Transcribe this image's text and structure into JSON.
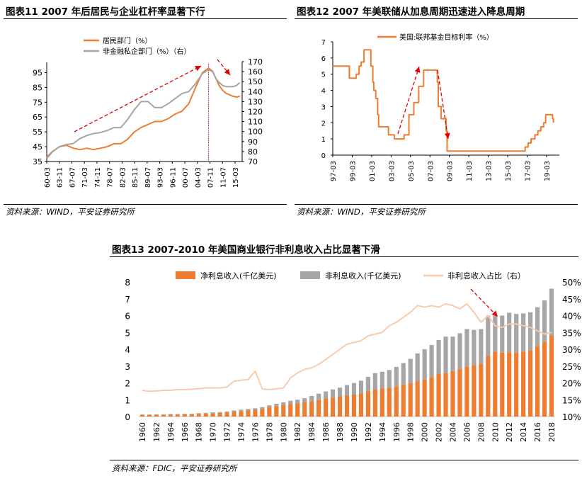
{
  "chart11": {
    "title": "图表11 2007 年后居民与企业杠杆率显著下行",
    "source": "资料来源：WIND，平安证券研究所",
    "chart_data": {
      "type": "line",
      "title": "",
      "x_ticks": [
        "60-03",
        "63-11",
        "67-07",
        "71-03",
        "74-11",
        "78-07",
        "82-03",
        "85-11",
        "89-07",
        "93-03",
        "96-11",
        "00-07",
        "04-03",
        "07-11",
        "11-07",
        "15-03"
      ],
      "y_left_ticks": [
        35,
        45,
        55,
        65,
        75,
        85,
        95
      ],
      "y_right_ticks": [
        70,
        80,
        90,
        100,
        110,
        120,
        130,
        140,
        150,
        160,
        170
      ],
      "ylim_left": [
        35,
        100
      ],
      "ylim_right": [
        70,
        170
      ],
      "legend": [
        "居民部门（%）",
        "非金融私企部门（%）（右）"
      ],
      "series": [
        {
          "name": "居民部门（%）",
          "axis": "left",
          "color": "#ED7D31",
          "x": [
            1960.2,
            1962,
            1964,
            1966,
            1968,
            1970,
            1972,
            1974,
            1976,
            1978,
            1980,
            1982,
            1984,
            1986,
            1988,
            1990,
            1992,
            1994,
            1996,
            1998,
            2000,
            2002,
            2004,
            2006,
            2007.8,
            2009,
            2010,
            2011,
            2012,
            2013,
            2014,
            2015,
            2016,
            2017
          ],
          "y": [
            38,
            42,
            45,
            46,
            44,
            43,
            44,
            43,
            44,
            45,
            47,
            47,
            50,
            55,
            58,
            60,
            62,
            62,
            64,
            67,
            69,
            74,
            85,
            95,
            98,
            96,
            91,
            86,
            83,
            81,
            80,
            79,
            78.5,
            79
          ]
        },
        {
          "name": "非金融私企部门（%）（右）",
          "axis": "right",
          "color": "#A6A6A6",
          "x": [
            1960.2,
            1962,
            1964,
            1966,
            1968,
            1970,
            1972,
            1974,
            1976,
            1978,
            1980,
            1982,
            1984,
            1986,
            1988,
            1990,
            1992,
            1994,
            1996,
            1998,
            2000,
            2002,
            2004,
            2006,
            2007.8,
            2009,
            2010,
            2011,
            2012,
            2013,
            2014,
            2015,
            2016,
            2017
          ],
          "y": [
            73,
            80,
            85,
            87,
            88,
            93,
            96,
            98,
            99,
            101,
            104,
            104,
            112,
            122,
            130,
            130,
            124,
            124,
            128,
            133,
            138,
            140,
            148,
            158,
            162,
            160,
            153,
            149,
            146,
            145,
            145,
            145,
            146,
            149
          ]
        }
      ],
      "annotations": [
        "dashed-vertical-at-07-11",
        "dashed-trend-arrow-up",
        "dashed-trend-arrow-down"
      ]
    }
  },
  "chart12": {
    "title": "图表12 2007 年美联储从加息周期迅速进入降息周期",
    "source": "资料来源：WIND，平安证券研究所",
    "chart_data": {
      "type": "line",
      "title": "",
      "x_ticks": [
        "97-03",
        "99-03",
        "01-03",
        "03-03",
        "05-03",
        "07-03",
        "09-03",
        "11-03",
        "13-03",
        "15-03",
        "17-03",
        "19-03"
      ],
      "y_ticks": [
        0,
        1,
        2,
        3,
        4,
        5,
        6,
        7
      ],
      "ylim": [
        0,
        7
      ],
      "legend": [
        "美国:联邦基金目标利率（%）"
      ],
      "series": [
        {
          "name": "美国:联邦基金目标利率（%）",
          "color": "#ED7D31",
          "x": [
            1997.2,
            1998.7,
            1998.9,
            1999.4,
            1999.6,
            1999.9,
            2000.1,
            2000.4,
            2000.9,
            2001.1,
            2001.3,
            2001.4,
            2001.6,
            2001.8,
            2001.9,
            2002.9,
            2003.5,
            2004.5,
            2005.0,
            2005.5,
            2006.0,
            2006.5,
            2007.7,
            2007.9,
            2008.0,
            2008.3,
            2008.8,
            2008.9,
            2015.9,
            2016.9,
            2017.2,
            2017.5,
            2017.9,
            2018.2,
            2018.5,
            2018.8,
            2019.0,
            2019.5,
            2019.7,
            2019.8
          ],
          "y": [
            5.5,
            5.5,
            4.75,
            4.75,
            5.0,
            5.5,
            5.75,
            6.5,
            6.5,
            5.5,
            4.5,
            4.0,
            3.5,
            2.5,
            1.75,
            1.25,
            1.0,
            1.25,
            2.5,
            3.25,
            4.25,
            5.25,
            5.25,
            4.5,
            3.0,
            2.25,
            1.5,
            0.25,
            0.25,
            0.5,
            0.75,
            1.0,
            1.25,
            1.5,
            1.75,
            2.0,
            2.5,
            2.5,
            2.25,
            2.0
          ]
        }
      ],
      "annotations": [
        "dashed-arrow-up-2004-2006",
        "dashed-arrow-down-2007-2009"
      ]
    }
  },
  "chart13": {
    "title": "图表13 2007-2010 年美国商业银行非利息收入占比显著下滑",
    "source": "资料来源：FDIC，平安证券研究所",
    "chart_data": {
      "type": "bar",
      "title": "",
      "x_ticks": [
        "1960",
        "1962",
        "1964",
        "1966",
        "1968",
        "1970",
        "1972",
        "1974",
        "1976",
        "1978",
        "1980",
        "1982",
        "1984",
        "1986",
        "1988",
        "1990",
        "1992",
        "1994",
        "1996",
        "1998",
        "2000",
        "2002",
        "2004",
        "2006",
        "2008",
        "2010",
        "2012",
        "2014",
        "2016",
        "2018"
      ],
      "y_left_ticks": [
        0,
        1,
        2,
        3,
        4,
        5,
        6,
        7,
        8
      ],
      "y_right_ticks": [
        "10%",
        "15%",
        "20%",
        "25%",
        "30%",
        "35%",
        "40%",
        "45%",
        "50%"
      ],
      "ylim_left": [
        0,
        8
      ],
      "ylim_right": [
        0.1,
        0.5
      ],
      "legend": [
        "净利息收入(千亿美元)",
        "非利息收入(千亿美元)",
        "非利息收入占比（右）"
      ],
      "years": [
        1960,
        1961,
        1962,
        1963,
        1964,
        1965,
        1966,
        1967,
        1968,
        1969,
        1970,
        1971,
        1972,
        1973,
        1974,
        1975,
        1976,
        1977,
        1978,
        1979,
        1980,
        1981,
        1982,
        1983,
        1984,
        1985,
        1986,
        1987,
        1988,
        1989,
        1990,
        1991,
        1992,
        1993,
        1994,
        1995,
        1996,
        1997,
        1998,
        1999,
        2000,
        2001,
        2002,
        2003,
        2004,
        2005,
        2006,
        2007,
        2008,
        2009,
        2010,
        2011,
        2012,
        2013,
        2014,
        2015,
        2016,
        2017,
        2018
      ],
      "series": [
        {
          "name": "净利息收入(千亿美元)",
          "type": "bar",
          "stack": "a",
          "color": "#ED7D31",
          "values": [
            0.1,
            0.1,
            0.11,
            0.11,
            0.12,
            0.12,
            0.13,
            0.14,
            0.16,
            0.18,
            0.2,
            0.22,
            0.24,
            0.29,
            0.33,
            0.36,
            0.4,
            0.46,
            0.55,
            0.62,
            0.68,
            0.74,
            0.78,
            0.84,
            0.92,
            1.0,
            1.07,
            1.13,
            1.2,
            1.27,
            1.31,
            1.38,
            1.51,
            1.6,
            1.68,
            1.72,
            1.8,
            1.9,
            1.98,
            2.1,
            2.2,
            2.35,
            2.55,
            2.6,
            2.7,
            2.85,
            2.95,
            3.05,
            3.15,
            3.6,
            3.85,
            3.8,
            3.82,
            3.8,
            3.85,
            3.95,
            4.2,
            4.45,
            4.8
          ]
        },
        {
          "name": "非利息收入(千亿美元)",
          "type": "bar",
          "stack": "a",
          "color": "#A6A6A6",
          "values": [
            0.02,
            0.02,
            0.02,
            0.02,
            0.03,
            0.03,
            0.03,
            0.03,
            0.04,
            0.04,
            0.05,
            0.05,
            0.06,
            0.07,
            0.08,
            0.09,
            0.09,
            0.1,
            0.12,
            0.14,
            0.16,
            0.2,
            0.22,
            0.25,
            0.3,
            0.36,
            0.42,
            0.48,
            0.52,
            0.6,
            0.68,
            0.75,
            0.85,
            0.98,
            0.98,
            1.05,
            1.15,
            1.28,
            1.45,
            1.65,
            1.8,
            1.9,
            2.0,
            2.15,
            2.05,
            2.1,
            2.25,
            2.1,
            2.05,
            2.4,
            2.15,
            2.2,
            2.35,
            2.3,
            2.28,
            2.25,
            2.3,
            2.45,
            2.8
          ]
        },
        {
          "name": "非利息收入占比（右）",
          "type": "line",
          "axis": "right",
          "color": "#F8CBAD",
          "values": [
            0.178,
            0.175,
            0.176,
            0.178,
            0.178,
            0.18,
            0.18,
            0.181,
            0.183,
            0.185,
            0.185,
            0.185,
            0.188,
            0.205,
            0.208,
            0.21,
            0.235,
            0.182,
            0.18,
            0.182,
            0.185,
            0.215,
            0.23,
            0.24,
            0.245,
            0.255,
            0.27,
            0.285,
            0.3,
            0.315,
            0.32,
            0.325,
            0.34,
            0.345,
            0.35,
            0.37,
            0.38,
            0.395,
            0.41,
            0.43,
            0.425,
            0.43,
            0.425,
            0.435,
            0.43,
            0.42,
            0.435,
            0.41,
            0.38,
            0.4,
            0.37,
            0.365,
            0.375,
            0.375,
            0.37,
            0.365,
            0.355,
            0.345,
            0.35
          ]
        }
      ],
      "annotations": [
        "dashed-arrow-down-2008-2010"
      ]
    }
  }
}
